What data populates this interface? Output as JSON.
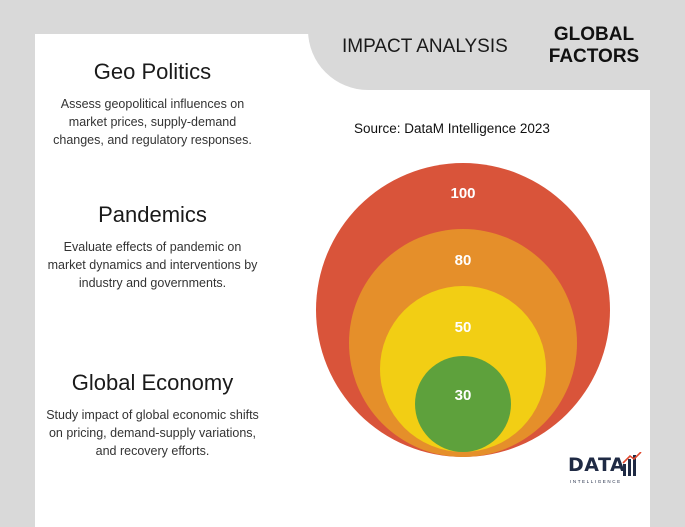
{
  "header": {
    "impact_label": "IMPACT ANALYSIS",
    "global_line1": "GLOBAL",
    "global_line2": "FACTORS"
  },
  "factors": [
    {
      "title": "Geo Politics",
      "description": "Assess geopolitical influences on market  prices, supply-demand changes, and regulatory responses."
    },
    {
      "title": "Pandemics",
      "description": "Evaluate effects of pandemic on market dynamics and interventions by industry and governments."
    },
    {
      "title": "Global Economy",
      "description": "Study impact of global economic shifts on pricing, demand-supply variations, and recovery efforts."
    }
  ],
  "source": "Source: DataM Intelligence  2023",
  "circles": [
    {
      "label": "100",
      "value": 100,
      "color": "#d9543a"
    },
    {
      "label": "80",
      "value": 80,
      "color": "#e58f2a"
    },
    {
      "label": "50",
      "value": 50,
      "color": "#f2ce14"
    },
    {
      "label": "30",
      "value": 30,
      "color": "#5ea13c"
    }
  ],
  "logo": {
    "main": "DATA",
    "sub": "INTELLIGENCE"
  }
}
